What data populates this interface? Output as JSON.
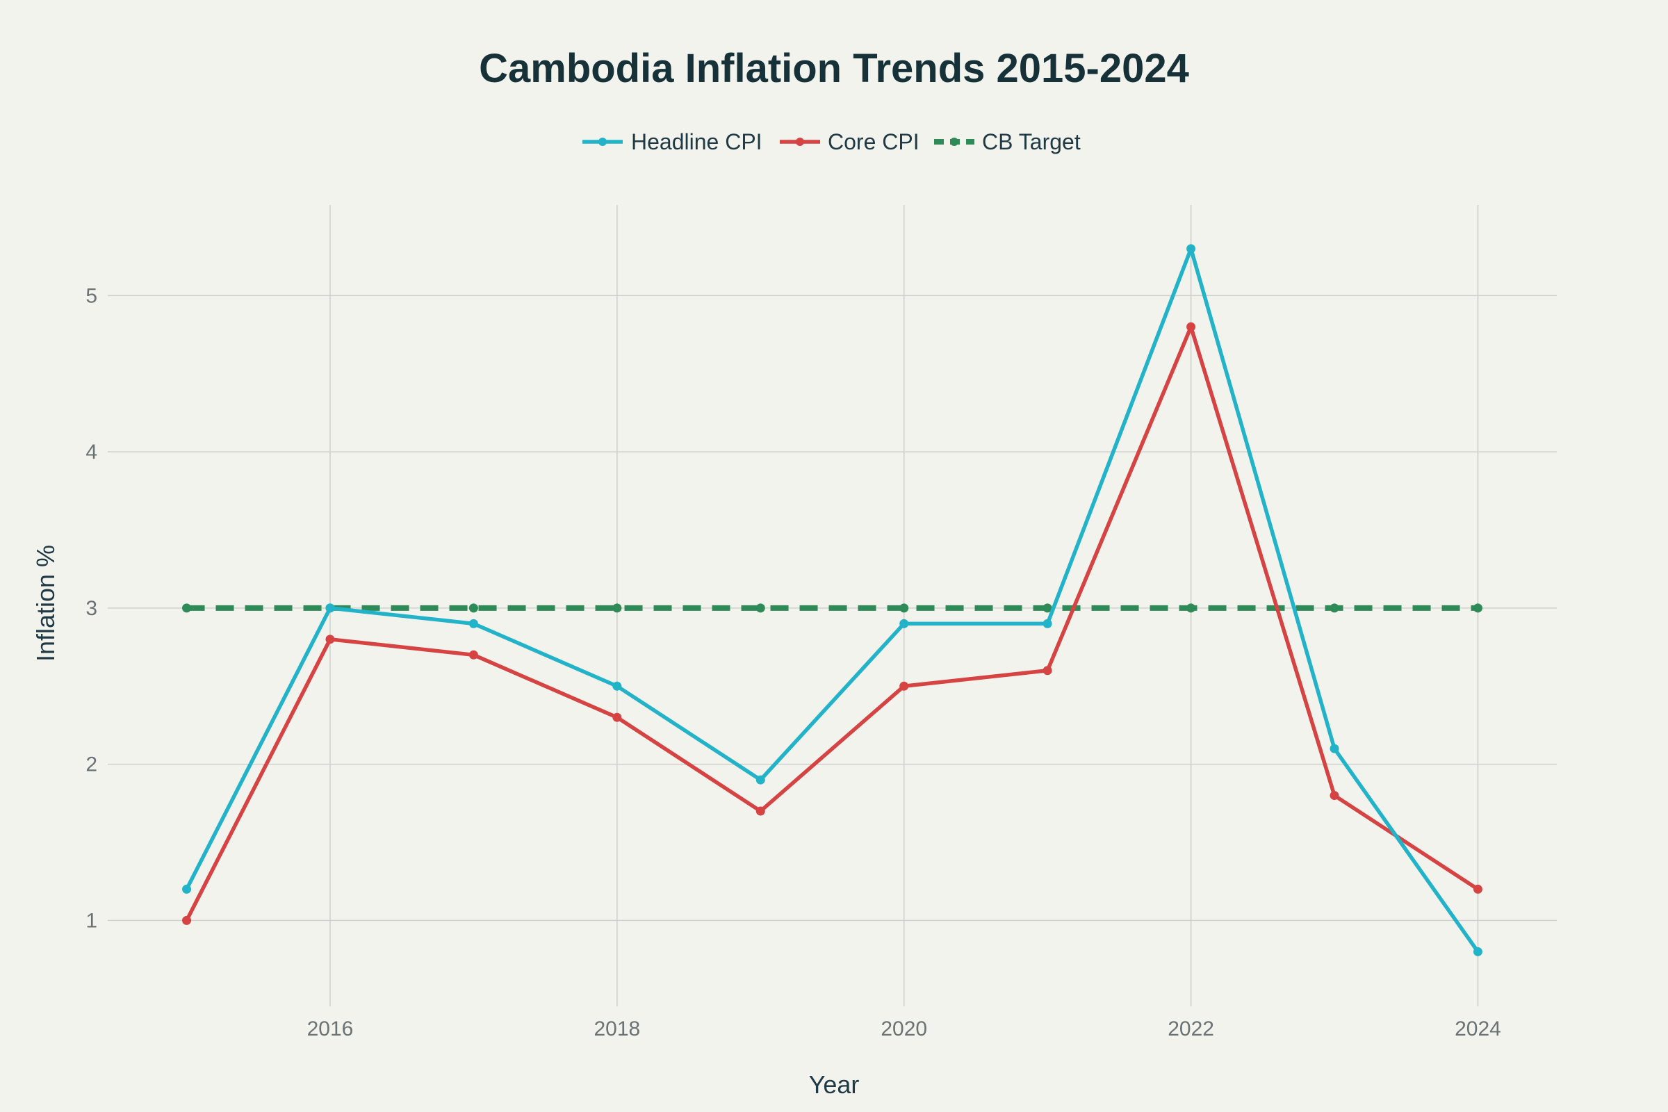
{
  "chart_data": {
    "type": "line",
    "title": "Cambodia Inflation Trends 2015-2024",
    "xlabel": "Year",
    "ylabel": "Inflation %",
    "x": [
      2015,
      2016,
      2017,
      2018,
      2019,
      2020,
      2021,
      2022,
      2023,
      2024
    ],
    "xlim": [
      2014.45,
      2024.55
    ],
    "ylim": [
      0.45,
      5.58
    ],
    "xticks": [
      2016,
      2018,
      2020,
      2022,
      2024
    ],
    "yticks": [
      1,
      2,
      3,
      4,
      5
    ],
    "grid": true,
    "legend_position": "top-center",
    "series": [
      {
        "name": "Headline CPI",
        "color": "#22b3c8",
        "dash": "solid",
        "values": [
          1.2,
          3.0,
          2.9,
          2.5,
          1.9,
          2.9,
          2.9,
          5.3,
          2.1,
          0.8
        ]
      },
      {
        "name": "Core CPI",
        "color": "#d64343",
        "dash": "solid",
        "values": [
          1.0,
          2.8,
          2.7,
          2.3,
          1.7,
          2.5,
          2.6,
          4.8,
          1.8,
          1.2
        ]
      },
      {
        "name": "CB Target",
        "color": "#2e8b57",
        "dash": "dashed",
        "values": [
          3,
          3,
          3,
          3,
          3,
          3,
          3,
          3,
          3,
          3
        ]
      }
    ]
  }
}
